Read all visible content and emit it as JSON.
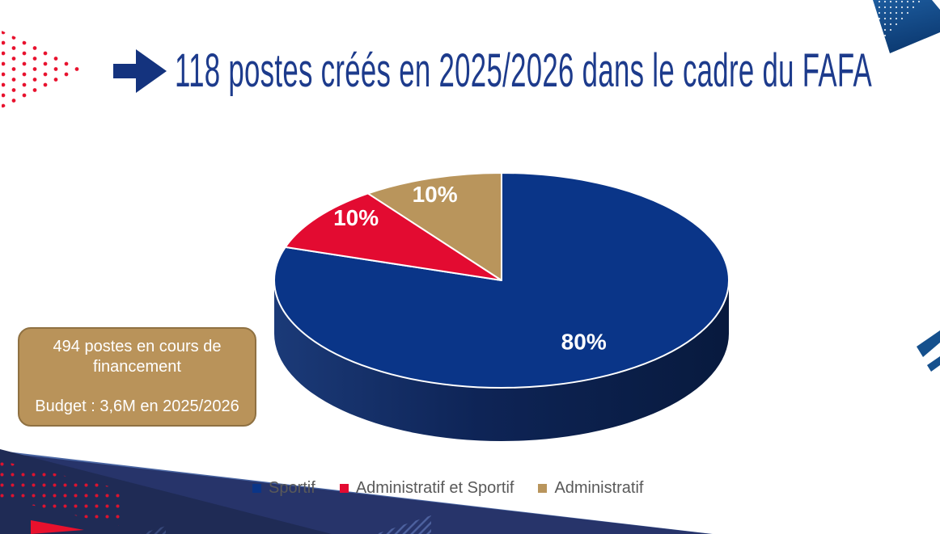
{
  "title": {
    "text": "118 postes créés en 2025/2026 dans le cadre du FAFA",
    "arrow_icon": "right-arrow-icon"
  },
  "callout": {
    "line1": "494 postes en cours de financement",
    "line2": "Budget : 3,6M en 2025/2026"
  },
  "chart_data": {
    "type": "pie",
    "style": "3d-pie",
    "title": "118 postes créés en 2025/2026 dans le cadre du FAFA",
    "categories": [
      "Sportif",
      "Administratif et Sportif",
      "Administratif"
    ],
    "values": [
      80,
      10,
      10
    ],
    "labels": [
      "80%",
      "10%",
      "10%"
    ],
    "colors": [
      "#0a3588",
      "#e30b31",
      "#b9955c"
    ],
    "start_angle_deg": 0,
    "direction": "clockwise",
    "legend_position": "bottom"
  },
  "colors": {
    "title_blue": "#1d3b8c",
    "brand_navy": "#0a3588",
    "brand_red": "#e8112d",
    "brand_tan": "#b9955c",
    "legend_text": "#595959"
  }
}
